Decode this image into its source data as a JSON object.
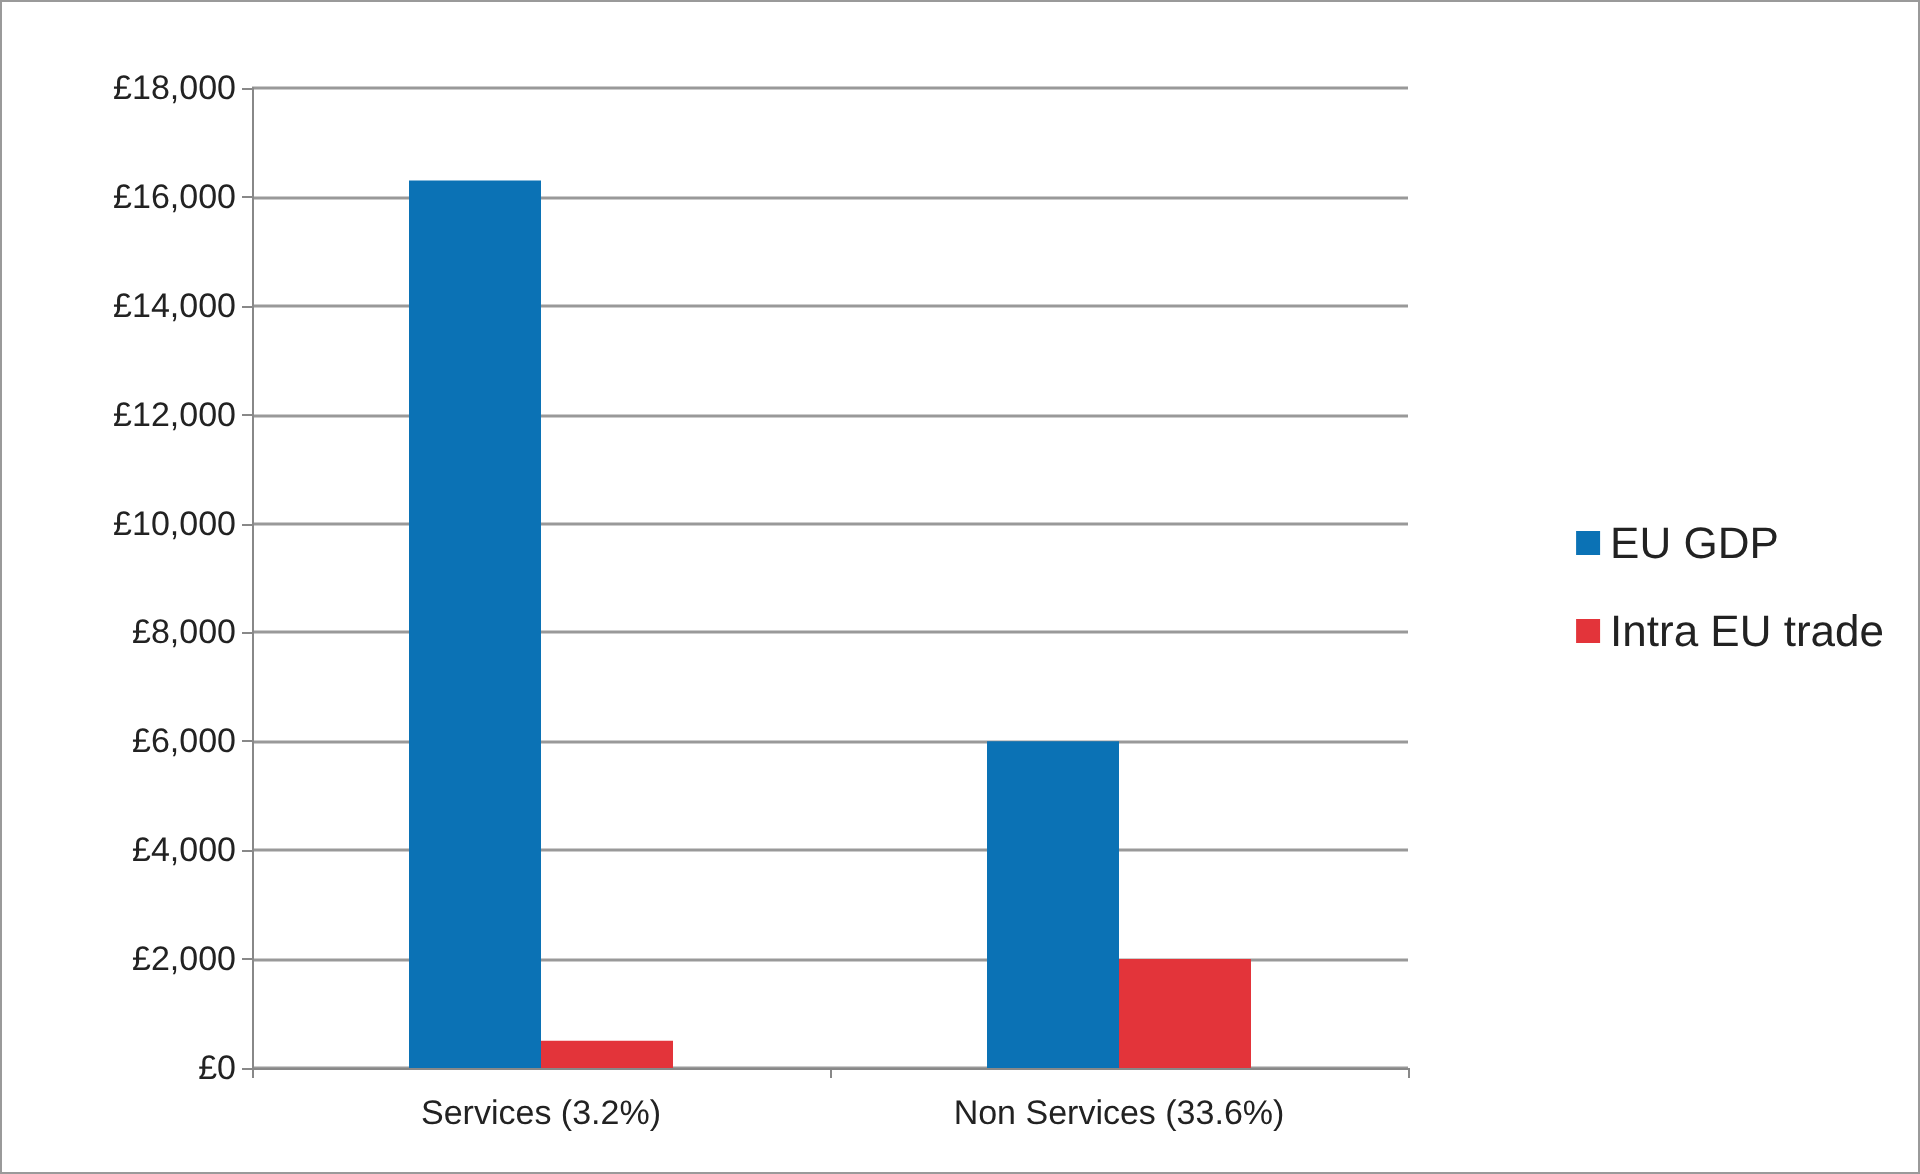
{
  "chart_data": {
    "type": "bar",
    "categories": [
      "Services (3.2%)",
      "Non Services (33.6%)"
    ],
    "series": [
      {
        "name": "EU GDP",
        "color": "#0b72b5",
        "values": [
          16300,
          6000
        ]
      },
      {
        "name": "Intra EU trade",
        "color": "#e3343a",
        "values": [
          500,
          2000
        ]
      }
    ],
    "ylim": [
      0,
      18000
    ],
    "yticks": [
      {
        "value": 0,
        "label": "£0"
      },
      {
        "value": 2000,
        "label": "£2,000"
      },
      {
        "value": 4000,
        "label": "£4,000"
      },
      {
        "value": 6000,
        "label": "£6,000"
      },
      {
        "value": 8000,
        "label": "£8,000"
      },
      {
        "value": 10000,
        "label": "£10,000"
      },
      {
        "value": 12000,
        "label": "£12,000"
      },
      {
        "value": 14000,
        "label": "£14,000"
      },
      {
        "value": 16000,
        "label": "£16,000"
      },
      {
        "value": 18000,
        "label": "£18,000"
      }
    ],
    "grid": "y",
    "legend": "right"
  }
}
